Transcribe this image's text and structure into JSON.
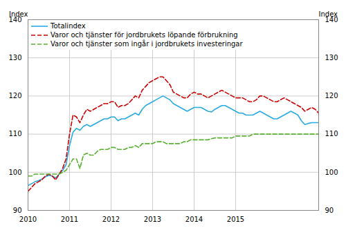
{
  "chart_data": {
    "type": "line",
    "ylabel": "Index",
    "y2label": "Index",
    "x": [
      2010,
      2010.0833333333,
      2010.1666666667,
      2010.25,
      2010.3333333333,
      2010.4166666667,
      2010.5,
      2010.5833333333,
      2010.6666666667,
      2010.75,
      2010.8333333333,
      2010.9166666667,
      2011,
      2011.0833333333,
      2011.1666666667,
      2011.25,
      2011.3333333333,
      2011.4166666667,
      2011.5,
      2011.5833333333,
      2011.6666666667,
      2011.75,
      2011.8333333333,
      2011.9166666667,
      2012,
      2012.0833333333,
      2012.1666666667,
      2012.25,
      2012.3333333333,
      2012.4166666667,
      2012.5,
      2012.5833333333,
      2012.6666666667,
      2012.75,
      2012.8333333333,
      2012.9166666667,
      2013,
      2013.0833333333,
      2013.1666666667,
      2013.25,
      2013.3333333333,
      2013.4166666667,
      2013.5,
      2013.5833333333,
      2013.6666666667,
      2013.75,
      2013.8333333333,
      2013.9166666667,
      2014,
      2014.0833333333,
      2014.1666666667,
      2014.25,
      2014.3333333333,
      2014.4166666667,
      2014.5,
      2014.5833333333,
      2014.6666666667,
      2014.75,
      2014.8333333333,
      2014.9166666667,
      2015,
      2015.0833333333,
      2015.1666666667,
      2015.25,
      2015.3333333333,
      2015.4166666667,
      2015.5,
      2015.5833333333,
      2015.6666666667,
      2015.75,
      2015.8333333333,
      2015.9166666667,
      2016,
      2016.0833333333,
      2016.1666666667,
      2016.25,
      2016.3333333333,
      2016.4166666667,
      2016.5,
      2016.5833333333,
      2016.6666666667,
      2016.75,
      2016.8333333333,
      2016.9166666667,
      2017
    ],
    "xlim": [
      2010,
      2017
    ],
    "xticks": [
      2010,
      2011,
      2012,
      2013,
      2014,
      2015
    ],
    "ylim": [
      90,
      140
    ],
    "yticks": [
      90,
      100,
      110,
      120,
      130,
      140
    ],
    "y2lim": [
      90,
      140
    ],
    "y2ticks": [
      90,
      100,
      110,
      120,
      130,
      140
    ],
    "grid": true,
    "legend": "upper left",
    "series": [
      {
        "name": "Totalindex",
        "color": "#29abe2",
        "line_style": "solid",
        "values": [
          96.5,
          97.0,
          97.5,
          97.8,
          98.2,
          98.8,
          99.2,
          99.0,
          98.5,
          99.5,
          100.5,
          102.0,
          107.0,
          110.5,
          111.5,
          111.0,
          112.0,
          112.5,
          112.0,
          112.5,
          113.0,
          113.5,
          114.0,
          114.0,
          114.5,
          114.5,
          113.5,
          114.0,
          114.0,
          114.5,
          115.0,
          115.5,
          115.0,
          116.5,
          117.5,
          118.0,
          118.5,
          119.0,
          119.5,
          120.0,
          119.5,
          119.0,
          118.0,
          117.5,
          117.0,
          116.5,
          116.0,
          116.5,
          117.0,
          117.0,
          117.0,
          116.5,
          116.0,
          115.8,
          116.5,
          117.0,
          117.5,
          117.5,
          117.0,
          116.5,
          116.0,
          115.5,
          115.5,
          115.0,
          115.0,
          115.0,
          115.5,
          116.0,
          115.5,
          115.0,
          114.5,
          114.0,
          114.0,
          114.5,
          115.0,
          115.5,
          116.0,
          115.5,
          115.0,
          113.5,
          112.5,
          112.8,
          113.0,
          113.0,
          113.0
        ]
      },
      {
        "name": "Varor och tjänster för jordbrukets löpande förbrukning",
        "color": "#cc0000",
        "line_style": "dashed",
        "values": [
          95.0,
          96.0,
          97.0,
          97.5,
          98.0,
          99.0,
          99.5,
          99.0,
          98.0,
          99.5,
          101.0,
          103.5,
          110.0,
          115.0,
          114.5,
          113.0,
          115.0,
          116.5,
          116.0,
          116.5,
          117.0,
          117.5,
          118.0,
          118.0,
          118.5,
          118.5,
          117.0,
          117.5,
          117.5,
          118.0,
          119.0,
          120.0,
          119.5,
          121.5,
          122.5,
          123.5,
          124.0,
          124.5,
          125.0,
          125.0,
          124.0,
          123.0,
          121.0,
          120.5,
          120.0,
          119.5,
          119.5,
          120.5,
          121.0,
          120.5,
          120.5,
          120.0,
          119.5,
          120.0,
          120.5,
          121.0,
          121.5,
          121.0,
          120.5,
          120.0,
          119.5,
          119.5,
          119.5,
          119.0,
          118.5,
          118.5,
          119.0,
          120.0,
          120.0,
          119.5,
          119.0,
          118.5,
          118.5,
          119.0,
          119.5,
          119.0,
          118.5,
          118.0,
          117.5,
          117.0,
          116.0,
          116.5,
          117.0,
          116.5,
          115.5
        ]
      },
      {
        "name": "Varor och tjänster som ingår i jordbrukets investeringar",
        "color": "#5ab031",
        "line_style": "dashed",
        "values": [
          99.0,
          99.0,
          99.5,
          99.5,
          99.5,
          99.5,
          99.5,
          99.5,
          99.5,
          99.5,
          100.0,
          100.5,
          102.0,
          103.5,
          103.5,
          101.0,
          104.5,
          105.0,
          104.5,
          104.5,
          105.5,
          106.0,
          106.0,
          106.0,
          106.5,
          106.5,
          106.0,
          106.0,
          106.0,
          106.5,
          106.5,
          107.0,
          106.5,
          107.5,
          107.5,
          107.5,
          107.5,
          108.0,
          108.0,
          108.0,
          107.5,
          107.5,
          107.5,
          107.5,
          107.5,
          108.0,
          108.0,
          108.5,
          108.5,
          108.5,
          108.5,
          108.5,
          108.5,
          108.8,
          109.0,
          109.0,
          109.0,
          109.0,
          109.0,
          109.0,
          109.5,
          109.5,
          109.5,
          109.5,
          109.5,
          110.0,
          110.0,
          110.0,
          110.0,
          110.0,
          110.0,
          110.0,
          110.0,
          110.0,
          110.0,
          110.0,
          110.0,
          110.0,
          110.0,
          110.0,
          110.0,
          110.0,
          110.0,
          110.0,
          110.0
        ]
      }
    ]
  }
}
